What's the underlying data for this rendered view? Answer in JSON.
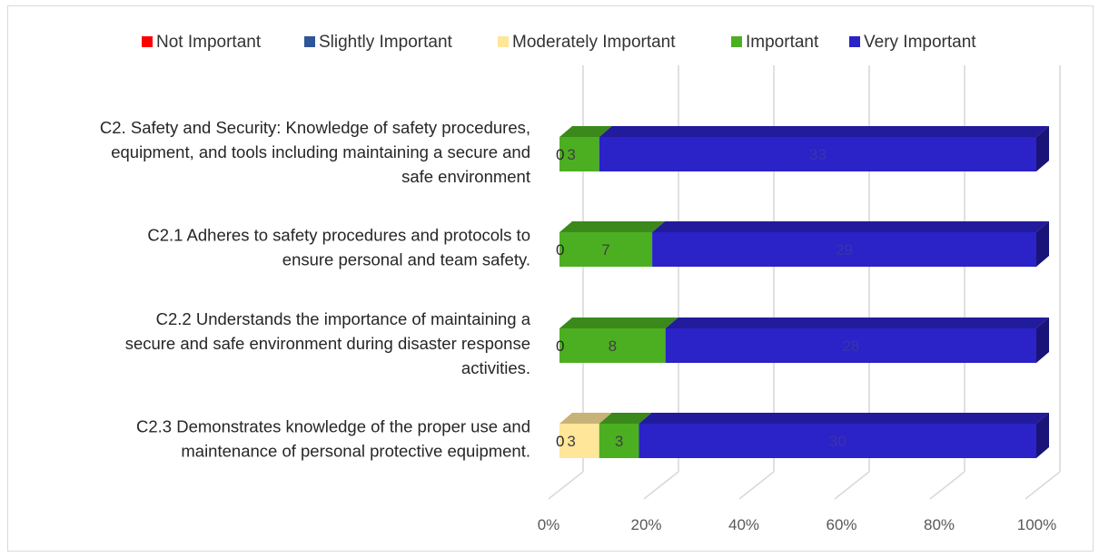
{
  "chart_data": {
    "type": "bar",
    "orientation": "horizontal",
    "stacked": "percent",
    "three_d": true,
    "categories": [
      "C2. Safety and Security: Knowledge of safety procedures, equipment, and tools including maintaining a secure and safe environment",
      "C2.1 Adheres to safety procedures and protocols to ensure personal and team safety.",
      "C2.2 Understands the importance of maintaining a secure and safe environment during disaster response activities.",
      "C2.3 Demonstrates knowledge of the proper use and maintenance of personal protective equipment."
    ],
    "category_lines": [
      [
        "C2. Safety and Security: Knowledge of safety procedures,",
        "equipment, and tools including maintaining a secure and",
        "safe environment"
      ],
      [
        "C2.1 Adheres to safety procedures and protocols to",
        "ensure personal and team safety."
      ],
      [
        "C2.2 Understands the importance of maintaining a",
        "secure and safe environment during disaster response",
        "activities."
      ],
      [
        "C2.3 Demonstrates knowledge of the proper use and",
        "maintenance of personal protective equipment."
      ]
    ],
    "series": [
      {
        "name": "Not Important",
        "color": "#ff0000",
        "values": [
          0,
          0,
          0,
          0
        ]
      },
      {
        "name": "Slightly Important",
        "color": "#2e5597",
        "values": [
          0,
          0,
          0,
          0
        ]
      },
      {
        "name": "Moderately Important",
        "color": "#ffe699",
        "values": [
          0,
          0,
          0,
          3
        ]
      },
      {
        "name": "Important",
        "color": "#4caf22",
        "values": [
          3,
          7,
          8,
          3
        ]
      },
      {
        "name": "Very Important",
        "color": "#2b22c8",
        "values": [
          33,
          29,
          28,
          30
        ]
      }
    ],
    "data_labels": [
      {
        "category": 0,
        "texts": [
          "0",
          "3",
          "33"
        ]
      },
      {
        "category": 1,
        "texts": [
          "0",
          "7",
          "29"
        ]
      },
      {
        "category": 2,
        "texts": [
          "0",
          "8",
          "28"
        ]
      },
      {
        "category": 3,
        "texts": [
          "0",
          "3",
          "3",
          "30"
        ]
      }
    ],
    "x_ticks": [
      "0%",
      "20%",
      "40%",
      "60%",
      "80%",
      "100%"
    ],
    "xlim": [
      0,
      100
    ],
    "legend_position": "top",
    "grid": true
  }
}
